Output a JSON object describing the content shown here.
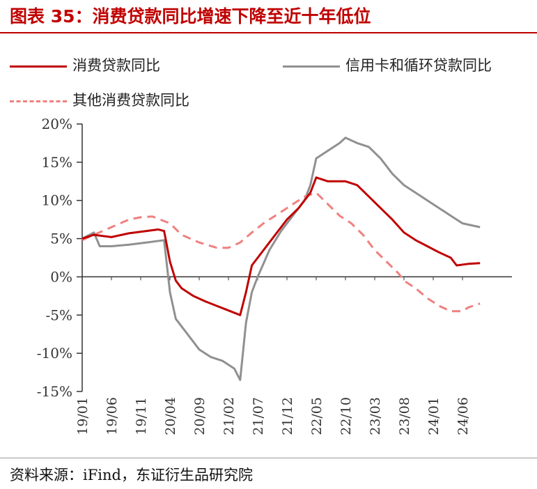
{
  "header": {
    "title": "图表 35：消费贷款同比增速下降至近十年低位"
  },
  "footer": {
    "source": "资料来源：iFind，东证衍生品研究院"
  },
  "colors": {
    "title": "#c00000",
    "consumer_loans": "#c00000",
    "credit_card": "#909090",
    "other_consumer": "#f08080"
  },
  "chart_data": {
    "type": "line",
    "title": "",
    "xlabel": "",
    "ylabel": "",
    "ylim": [
      -15,
      20
    ],
    "yticks": [
      20,
      15,
      10,
      5,
      0,
      -5,
      -10,
      -15
    ],
    "ytick_labels": [
      "20%",
      "15%",
      "10%",
      "5%",
      "0%",
      "-5%",
      "-10%",
      "-15%"
    ],
    "xticks": [
      "19/01",
      "19/06",
      "19/11",
      "20/04",
      "20/09",
      "21/02",
      "21/07",
      "21/12",
      "22/05",
      "22/10",
      "23/03",
      "23/08",
      "24/01",
      "24/06"
    ],
    "x_unit": "month",
    "legend_position": "top",
    "grid": false,
    "series": [
      {
        "name": "消费贷款同比",
        "style": "solid",
        "color": "#c00000",
        "points": [
          [
            "19/01",
            5.0
          ],
          [
            "19/03",
            5.5
          ],
          [
            "19/06",
            5.2
          ],
          [
            "19/09",
            5.7
          ],
          [
            "19/12",
            6.0
          ],
          [
            "20/02",
            6.2
          ],
          [
            "20/03",
            6.0
          ],
          [
            "20/04",
            2.0
          ],
          [
            "20/05",
            -0.5
          ],
          [
            "20/06",
            -1.5
          ],
          [
            "20/08",
            -2.5
          ],
          [
            "20/10",
            -3.2
          ],
          [
            "20/12",
            -3.8
          ],
          [
            "21/02",
            -4.4
          ],
          [
            "21/04",
            -5.0
          ],
          [
            "21/05",
            -2.0
          ],
          [
            "21/06",
            1.5
          ],
          [
            "21/08",
            3.5
          ],
          [
            "21/10",
            5.5
          ],
          [
            "21/12",
            7.5
          ],
          [
            "22/02",
            9.0
          ],
          [
            "22/04",
            11.0
          ],
          [
            "22/05",
            13.0
          ],
          [
            "22/07",
            12.5
          ],
          [
            "22/10",
            12.5
          ],
          [
            "22/12",
            12.0
          ],
          [
            "23/02",
            10.5
          ],
          [
            "23/04",
            9.0
          ],
          [
            "23/06",
            7.5
          ],
          [
            "23/08",
            5.8
          ],
          [
            "23/10",
            4.8
          ],
          [
            "23/12",
            4.0
          ],
          [
            "24/02",
            3.2
          ],
          [
            "24/04",
            2.5
          ],
          [
            "24/05",
            1.5
          ],
          [
            "24/07",
            1.7
          ],
          [
            "24/09",
            1.8
          ]
        ]
      },
      {
        "name": "信用卡和循环贷款同比",
        "style": "solid",
        "color": "#909090",
        "points": [
          [
            "19/01",
            5.0
          ],
          [
            "19/03",
            5.8
          ],
          [
            "19/04",
            4.0
          ],
          [
            "19/06",
            4.0
          ],
          [
            "19/09",
            4.2
          ],
          [
            "19/12",
            4.5
          ],
          [
            "20/03",
            4.8
          ],
          [
            "20/04",
            -2.0
          ],
          [
            "20/05",
            -5.5
          ],
          [
            "20/07",
            -7.5
          ],
          [
            "20/09",
            -9.5
          ],
          [
            "20/11",
            -10.5
          ],
          [
            "21/01",
            -11.0
          ],
          [
            "21/03",
            -12.0
          ],
          [
            "21/04",
            -13.5
          ],
          [
            "21/05",
            -6.0
          ],
          [
            "21/06",
            -2.0
          ],
          [
            "21/07",
            0.0
          ],
          [
            "21/09",
            3.5
          ],
          [
            "21/11",
            6.0
          ],
          [
            "22/01",
            8.0
          ],
          [
            "22/03",
            10.0
          ],
          [
            "22/04",
            12.0
          ],
          [
            "22/05",
            15.5
          ],
          [
            "22/07",
            16.5
          ],
          [
            "22/09",
            17.5
          ],
          [
            "22/10",
            18.2
          ],
          [
            "22/12",
            17.5
          ],
          [
            "23/02",
            17.0
          ],
          [
            "23/04",
            15.5
          ],
          [
            "23/06",
            13.5
          ],
          [
            "23/08",
            12.0
          ],
          [
            "23/10",
            11.0
          ],
          [
            "23/12",
            10.0
          ],
          [
            "24/02",
            9.0
          ],
          [
            "24/04",
            8.0
          ],
          [
            "24/06",
            7.0
          ],
          [
            "24/09",
            6.5
          ]
        ]
      },
      {
        "name": "其他消费贷款同比",
        "style": "dashed",
        "color": "#f08080",
        "points": [
          [
            "19/01",
            4.8
          ],
          [
            "19/03",
            5.5
          ],
          [
            "19/06",
            6.5
          ],
          [
            "19/09",
            7.5
          ],
          [
            "19/11",
            7.8
          ],
          [
            "20/01",
            7.9
          ],
          [
            "20/04",
            7.0
          ],
          [
            "20/06",
            5.5
          ],
          [
            "20/09",
            4.5
          ],
          [
            "20/12",
            3.8
          ],
          [
            "21/02",
            3.8
          ],
          [
            "21/04",
            4.5
          ],
          [
            "21/06",
            5.8
          ],
          [
            "21/08",
            7.0
          ],
          [
            "21/10",
            8.0
          ],
          [
            "21/12",
            9.0
          ],
          [
            "22/03",
            10.5
          ],
          [
            "22/05",
            11.0
          ],
          [
            "22/07",
            9.5
          ],
          [
            "22/09",
            8.0
          ],
          [
            "22/11",
            7.0
          ],
          [
            "23/01",
            5.5
          ],
          [
            "23/03",
            3.5
          ],
          [
            "23/05",
            2.0
          ],
          [
            "23/07",
            0.5
          ],
          [
            "23/08",
            -0.5
          ],
          [
            "23/10",
            -1.5
          ],
          [
            "23/12",
            -2.8
          ],
          [
            "24/02",
            -3.8
          ],
          [
            "24/04",
            -4.5
          ],
          [
            "24/06",
            -4.5
          ],
          [
            "24/07",
            -4.0
          ],
          [
            "24/09",
            -3.5
          ]
        ]
      }
    ]
  }
}
